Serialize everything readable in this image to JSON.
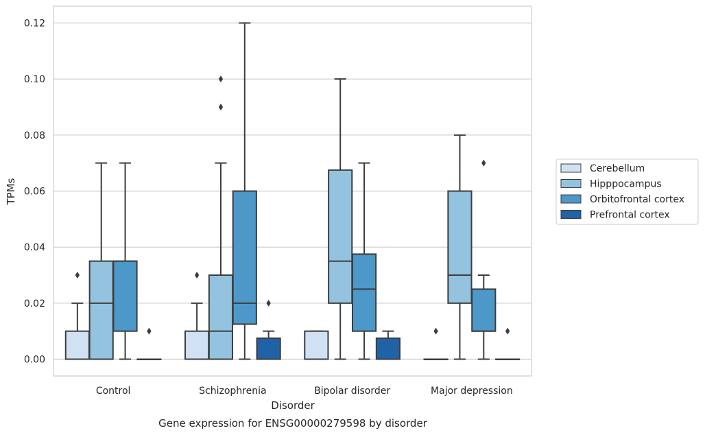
{
  "chart_data": {
    "type": "box",
    "title": "Gene expression for ENSG00000279598 by disorder",
    "xlabel": "Disorder",
    "ylabel": "TPMs",
    "ylim": [
      -0.006,
      0.126
    ],
    "yticks": [
      "0.00",
      "0.02",
      "0.04",
      "0.06",
      "0.08",
      "0.10",
      "0.12"
    ],
    "grid": true,
    "legend_position": "right",
    "categories": [
      "Control",
      "Schizophrenia",
      "Bipolar disorder",
      "Major depression"
    ],
    "series": [
      {
        "name": "Cerebellum",
        "color": "#cfe1f2",
        "boxes": [
          {
            "q1": 0.0,
            "median": 0.0,
            "q3": 0.01,
            "whislo": 0.0,
            "whishi": 0.02,
            "fliers": [
              0.03
            ]
          },
          {
            "q1": 0.0,
            "median": 0.0,
            "q3": 0.01,
            "whislo": 0.0,
            "whishi": 0.02,
            "fliers": [
              0.03
            ]
          },
          {
            "q1": 0.0,
            "median": 0.0,
            "q3": 0.01,
            "whislo": 0.0,
            "whishi": 0.01,
            "fliers": []
          },
          {
            "q1": 0.0,
            "median": 0.0,
            "q3": 0.0,
            "whislo": 0.0,
            "whishi": 0.0,
            "fliers": [
              0.01
            ]
          }
        ]
      },
      {
        "name": "Hipppocampus",
        "color": "#93c3df",
        "boxes": [
          {
            "q1": 0.0,
            "median": 0.02,
            "q3": 0.035,
            "whislo": 0.0,
            "whishi": 0.07,
            "fliers": []
          },
          {
            "q1": 0.0,
            "median": 0.01,
            "q3": 0.03,
            "whislo": 0.0,
            "whishi": 0.07,
            "fliers": [
              0.09,
              0.1
            ]
          },
          {
            "q1": 0.02,
            "median": 0.035,
            "q3": 0.0675,
            "whislo": 0.0,
            "whishi": 0.1,
            "fliers": []
          },
          {
            "q1": 0.02,
            "median": 0.03,
            "q3": 0.06,
            "whislo": 0.0,
            "whishi": 0.08,
            "fliers": []
          }
        ]
      },
      {
        "name": "Orbitofrontal cortex",
        "color": "#4b98c9",
        "boxes": [
          {
            "q1": 0.01,
            "median": 0.035,
            "q3": 0.035,
            "whislo": 0.0,
            "whishi": 0.07,
            "fliers": []
          },
          {
            "q1": 0.0125,
            "median": 0.02,
            "q3": 0.06,
            "whislo": 0.0,
            "whishi": 0.12,
            "fliers": []
          },
          {
            "q1": 0.01,
            "median": 0.025,
            "q3": 0.0375,
            "whislo": 0.0,
            "whishi": 0.07,
            "fliers": []
          },
          {
            "q1": 0.01,
            "median": 0.01,
            "q3": 0.025,
            "whislo": 0.0,
            "whishi": 0.03,
            "fliers": [
              0.07
            ]
          }
        ]
      },
      {
        "name": "Prefrontal cortex",
        "color": "#2062a6",
        "boxes": [
          {
            "q1": 0.0,
            "median": 0.0,
            "q3": 0.0,
            "whislo": 0.0,
            "whishi": 0.0,
            "fliers": [
              0.01
            ]
          },
          {
            "q1": 0.0,
            "median": 0.0,
            "q3": 0.0075,
            "whislo": 0.0,
            "whishi": 0.01,
            "fliers": [
              0.02
            ]
          },
          {
            "q1": 0.0,
            "median": 0.0,
            "q3": 0.0075,
            "whislo": 0.0,
            "whishi": 0.01,
            "fliers": []
          },
          {
            "q1": 0.0,
            "median": 0.0,
            "q3": 0.0,
            "whislo": 0.0,
            "whishi": 0.0,
            "fliers": [
              0.01
            ]
          }
        ]
      }
    ]
  }
}
